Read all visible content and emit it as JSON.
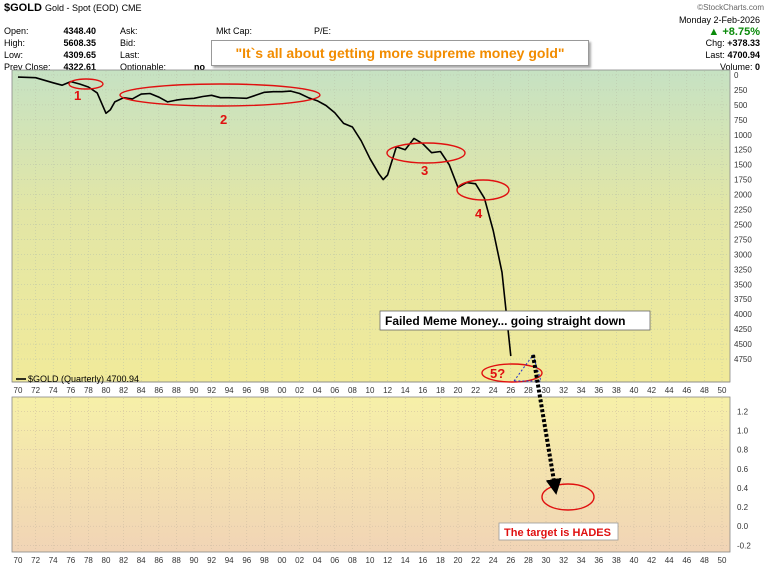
{
  "header": {
    "symbol": "$GOLD",
    "description": "Gold - Spot (EOD)",
    "exchange": "CME",
    "brand": "©StockCharts.com",
    "date": "Monday  2-Feb-2026",
    "change_pct": "+8.75%",
    "change_label": "Chg:",
    "change_value": "+378.33",
    "last_label": "Last:",
    "last_value": "4700.94",
    "volume_label": "Volume:",
    "volume_value": "0",
    "left_quotes": [
      {
        "label": "Open:",
        "value": "4348.40"
      },
      {
        "label": "High:",
        "value": "5608.35"
      },
      {
        "label": "Low:",
        "value": "4309.65"
      },
      {
        "label": "Prev Close:",
        "value": "4322.61"
      }
    ],
    "mid_quotes": [
      {
        "label": "Ask:",
        "value": ""
      },
      {
        "label": "Bid:",
        "value": ""
      },
      {
        "label": "Last:",
        "value": ""
      },
      {
        "label": "Optionable:",
        "value": "no"
      }
    ],
    "right_quotes": [
      {
        "label": "Mkt Cap:",
        "value": ""
      },
      {
        "label": "P/E:",
        "value": ""
      }
    ],
    "banner": "\"It`s all about getting more supreme money gold\""
  },
  "chart_data": [
    {
      "type": "line",
      "panel": "top",
      "scale": "inverted",
      "legend": "$GOLD (Quarterly) 4700.94",
      "legend_color": "#000000",
      "x_ticks": [
        "70",
        "72",
        "74",
        "76",
        "78",
        "80",
        "82",
        "84",
        "86",
        "88",
        "90",
        "92",
        "94",
        "96",
        "98",
        "00",
        "02",
        "04",
        "06",
        "08",
        "10",
        "12",
        "14",
        "16",
        "18",
        "20",
        "22",
        "24",
        "26",
        "28",
        "30",
        "32",
        "34",
        "36",
        "38",
        "40",
        "42",
        "44",
        "46",
        "48",
        "50"
      ],
      "y_ticks": [
        0,
        250,
        500,
        750,
        1000,
        1250,
        1500,
        1750,
        2000,
        2250,
        2500,
        2750,
        3000,
        3250,
        3500,
        3750,
        4000,
        4250,
        4500,
        4750
      ],
      "ylim": [
        0,
        4900
      ],
      "series": [
        {
          "values": [
            [
              1970,
              35
            ],
            [
              1972,
              45
            ],
            [
              1974,
              130
            ],
            [
              1975,
              170
            ],
            [
              1976,
              110
            ],
            [
              1977,
              150
            ],
            [
              1978,
              200
            ],
            [
              1979,
              300
            ],
            [
              1980,
              640
            ],
            [
              1980.5,
              580
            ],
            [
              1981,
              450
            ],
            [
              1982,
              380
            ],
            [
              1983,
              400
            ],
            [
              1984,
              320
            ],
            [
              1985,
              310
            ],
            [
              1986,
              370
            ],
            [
              1987,
              450
            ],
            [
              1988,
              420
            ],
            [
              1989,
              400
            ],
            [
              1990,
              390
            ],
            [
              1991,
              360
            ],
            [
              1992,
              340
            ],
            [
              1993,
              380
            ],
            [
              1994,
              380
            ],
            [
              1995,
              385
            ],
            [
              1996,
              390
            ],
            [
              1997,
              340
            ],
            [
              1998,
              290
            ],
            [
              1999,
              280
            ],
            [
              2000,
              280
            ],
            [
              2001,
              270
            ],
            [
              2002,
              310
            ],
            [
              2003,
              380
            ],
            [
              2004,
              430
            ],
            [
              2005,
              510
            ],
            [
              2006,
              630
            ],
            [
              2007,
              810
            ],
            [
              2008,
              870
            ],
            [
              2009,
              1100
            ],
            [
              2010,
              1400
            ],
            [
              2011,
              1650
            ],
            [
              2011.5,
              1750
            ],
            [
              2012,
              1670
            ],
            [
              2013,
              1200
            ],
            [
              2014,
              1250
            ],
            [
              2015,
              1060
            ],
            [
              2016,
              1150
            ],
            [
              2017,
              1300
            ],
            [
              2018,
              1280
            ],
            [
              2019,
              1500
            ],
            [
              2020,
              1880
            ],
            [
              2021,
              1800
            ],
            [
              2022,
              1820
            ],
            [
              2023,
              2060
            ],
            [
              2024,
              2600
            ],
            [
              2025,
              3300
            ],
            [
              2025.5,
              4000
            ],
            [
              2026,
              4700
            ]
          ],
          "color": "#000000"
        }
      ],
      "annotations": [
        {
          "label": "1",
          "x": 1977,
          "y": 140
        },
        {
          "label": "2",
          "x": 1992,
          "y": 320
        },
        {
          "label": "3",
          "x": 2016,
          "y": 1220
        },
        {
          "label": "4",
          "x": 2022,
          "y": 1830
        },
        {
          "label": "5?",
          "x": 2026,
          "y": 4610
        },
        {
          "label": "Failed Meme Money... going straight down",
          "x": 2032,
          "y": 3870
        }
      ]
    },
    {
      "type": "line",
      "panel": "bottom",
      "x_ticks": [
        "70",
        "72",
        "74",
        "76",
        "78",
        "80",
        "82",
        "84",
        "86",
        "88",
        "90",
        "92",
        "94",
        "96",
        "98",
        "00",
        "02",
        "04",
        "06",
        "08",
        "10",
        "12",
        "14",
        "16",
        "18",
        "20",
        "22",
        "24",
        "26",
        "28",
        "30",
        "32",
        "34",
        "36",
        "38",
        "40",
        "42",
        "44",
        "46",
        "48",
        "50"
      ],
      "y_ticks": [
        "1.2",
        "1.0",
        "0.8",
        "0.6",
        "0.4",
        "0.2",
        "0.0",
        "-0.2"
      ],
      "ylim": [
        -0.27,
        1.33
      ],
      "annotations": [
        {
          "label": "The target is HADES",
          "x": 2031,
          "y": 0.03
        }
      ]
    }
  ]
}
